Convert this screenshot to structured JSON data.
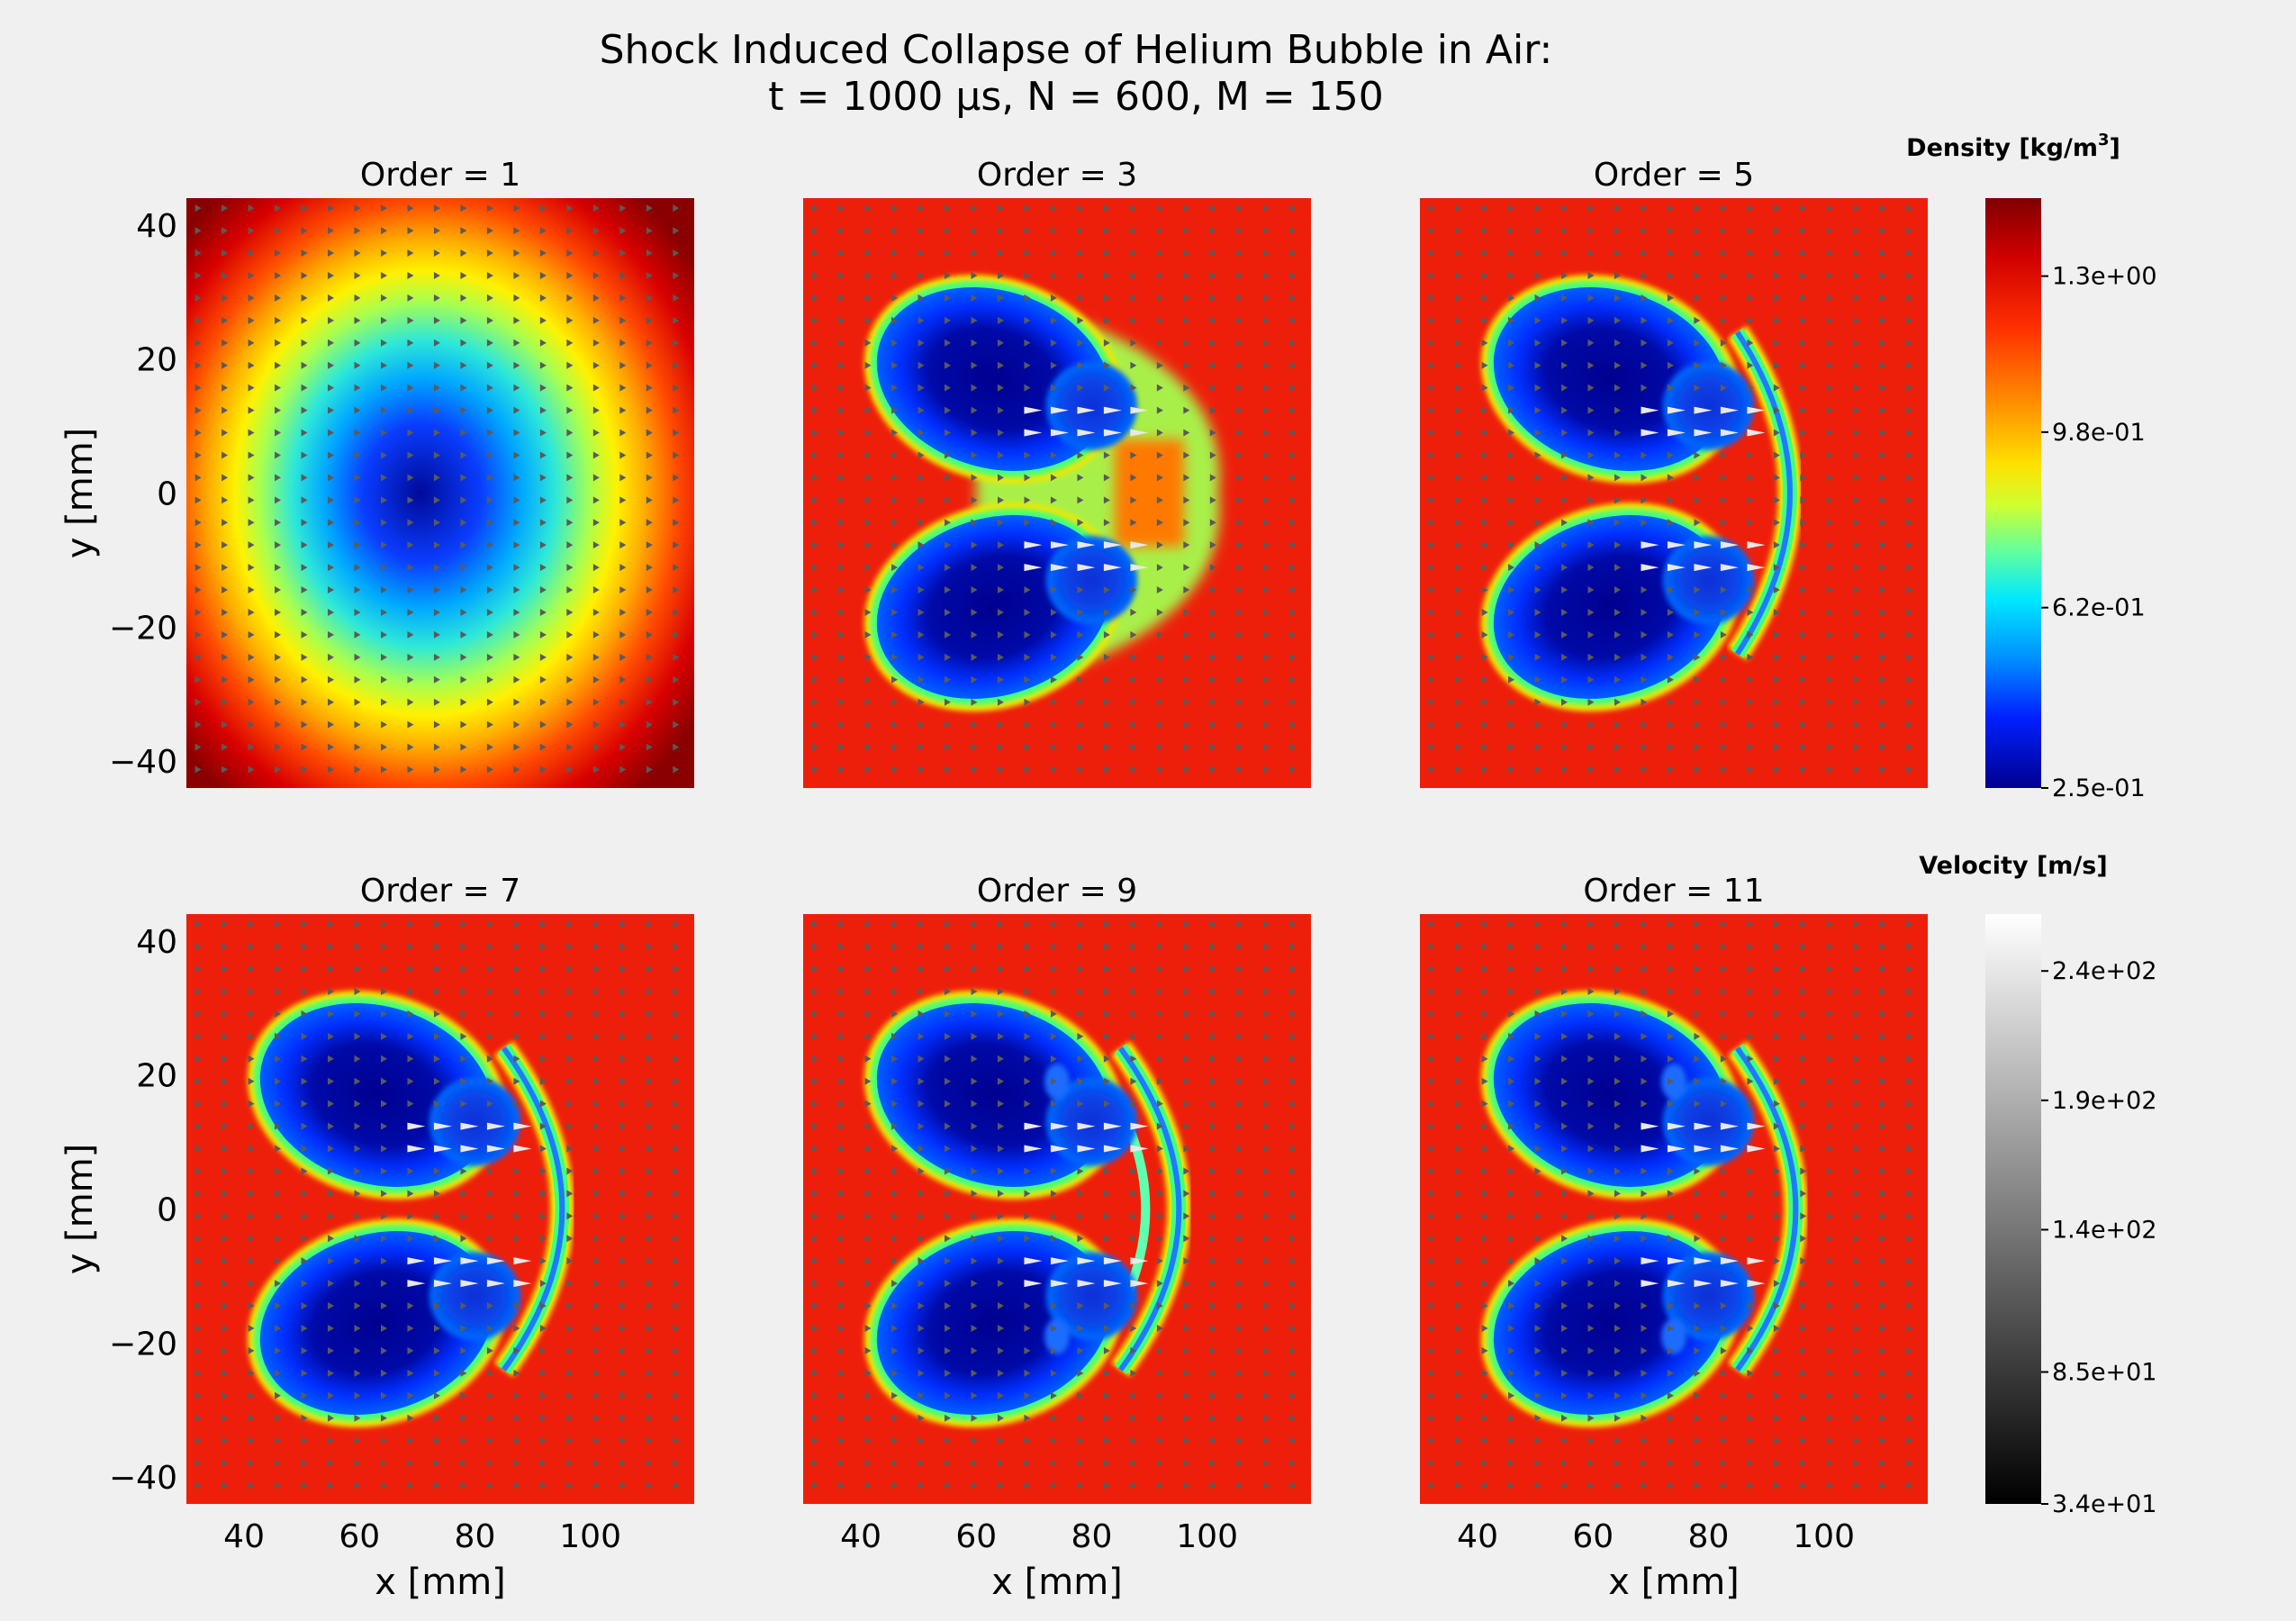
{
  "figure": {
    "title_line1": "Shock Induced Collapse of Helium Bubble in Air:",
    "title_line2": "t = 1000 μs, N = 600, M = 150"
  },
  "chart_data": {
    "type": "heatmap",
    "description_fields": "2x3 grid of density contour plots with overlaid velocity quiver arrows",
    "xlabel": "x [mm]",
    "ylabel": "y [mm]",
    "xlim": [
      30,
      118
    ],
    "ylim": [
      -44,
      44
    ],
    "x_ticks": [
      40,
      60,
      80,
      100
    ],
    "x_tick_labels": [
      "40",
      "60",
      "80",
      "100"
    ],
    "y_ticks": [
      40,
      20,
      0,
      -20,
      -40
    ],
    "y_tick_labels": [
      "40",
      "20",
      "0",
      "−20",
      "−40"
    ],
    "panels": [
      {
        "title": "Order = 1",
        "order": 1
      },
      {
        "title": "Order = 3",
        "order": 3
      },
      {
        "title": "Order = 5",
        "order": 5
      },
      {
        "title": "Order = 7",
        "order": 7
      },
      {
        "title": "Order = 9",
        "order": 9
      },
      {
        "title": "Order = 11",
        "order": 11
      }
    ],
    "colorbars": [
      {
        "title": "Density [kg/m³]",
        "title_base": "Density [kg/m",
        "title_sup": "3",
        "title_end": "]",
        "colormap": "jet",
        "range": [
          0.25,
          1.46
        ],
        "ticks": [
          0.25,
          0.62,
          0.98,
          1.3
        ],
        "tick_labels": [
          "2.5e-01",
          "6.2e-01",
          "9.8e-01",
          "1.3e+00"
        ]
      },
      {
        "title": "Velocity [m/s]",
        "colormap": "gray",
        "range": [
          34,
          262
        ],
        "ticks": [
          34,
          85,
          140,
          190,
          240
        ],
        "tick_labels": [
          "3.4e+01",
          "8.5e+01",
          "1.4e+02",
          "1.9e+02",
          "2.4e+02"
        ]
      }
    ],
    "grid": false,
    "colors": {
      "background": "#f0f0f0",
      "ambient_air": "#ee1f0a",
      "bubble_core": "#00008f",
      "interface": "#40ff60"
    }
  }
}
